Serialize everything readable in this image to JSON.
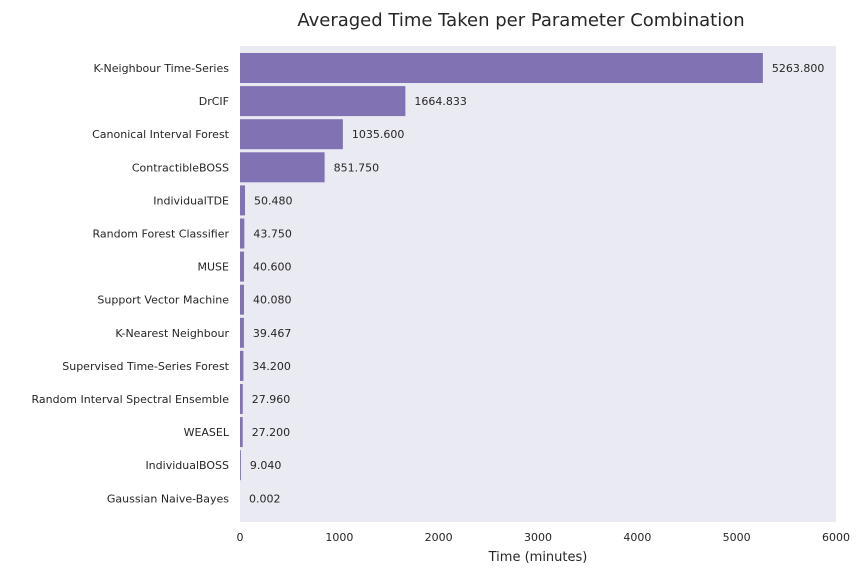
{
  "chart_data": {
    "type": "bar",
    "orientation": "horizontal",
    "title": "Averaged Time Taken per Parameter Combination",
    "xlabel": "Time (minutes)",
    "ylabel": "",
    "xlim": [
      0,
      6000
    ],
    "xticks": [
      0,
      1000,
      2000,
      3000,
      4000,
      5000,
      6000
    ],
    "grid": false,
    "categories": [
      "K-Neighbour Time-Series",
      "DrCIF",
      "Canonical Interval Forest",
      "ContractibleBOSS",
      "IndividualTDE",
      "Random Forest Classifier",
      "MUSE",
      "Support Vector Machine",
      "K-Nearest Neighbour",
      "Supervised Time-Series Forest",
      "Random Interval Spectral Ensemble",
      "WEASEL",
      "IndividualBOSS",
      "Gaussian Naive-Bayes"
    ],
    "values": [
      5263.8,
      1664.833,
      1035.6,
      851.75,
      50.48,
      43.75,
      40.6,
      40.08,
      39.467,
      34.2,
      27.96,
      27.2,
      9.04,
      0.002
    ],
    "value_labels": [
      "5263.800",
      "1664.833",
      "1035.600",
      "851.750",
      "50.480",
      "43.750",
      "40.600",
      "40.080",
      "39.467",
      "34.200",
      "27.960",
      "27.200",
      "9.040",
      "0.002"
    ],
    "colors": {
      "bar": "#8172b3",
      "plot_background": "#eaeaf2",
      "text": "#262626"
    }
  }
}
